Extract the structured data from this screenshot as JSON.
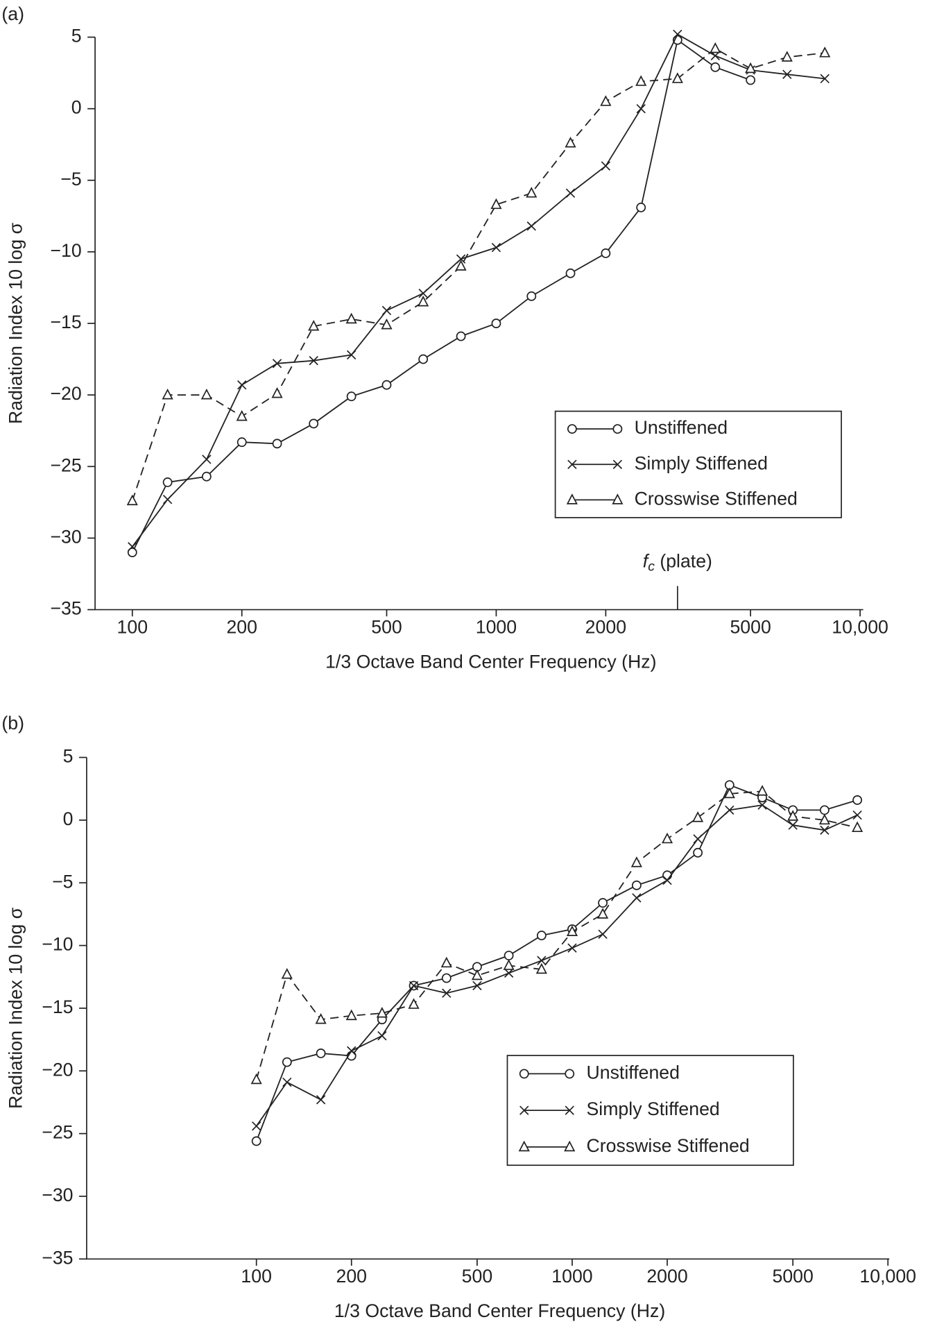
{
  "chart_data": [
    {
      "type": "line",
      "panel_label": "(a)",
      "xlabel": "1/3 Octave Band Center Frequency (Hz)",
      "ylabel": "Radiation Index 10 log σ",
      "x": [
        100,
        125,
        160,
        200,
        250,
        315,
        400,
        500,
        630,
        800,
        1000,
        1250,
        1600,
        2000,
        2500,
        3150,
        4000,
        5000,
        6300,
        8000
      ],
      "xscale": "log",
      "xlim": [
        79,
        10200
      ],
      "xticks": [
        100,
        200,
        500,
        1000,
        2000,
        5000,
        {
          "value": 10000,
          "label": "10,000"
        }
      ],
      "ylim": [
        -35,
        5
      ],
      "yticks": [
        {
          "value": -35,
          "label": "−35"
        },
        {
          "value": -30,
          "label": "−30"
        },
        {
          "value": -25,
          "label": "−25"
        },
        {
          "value": -20,
          "label": "−20"
        },
        {
          "value": -15,
          "label": "−15"
        },
        {
          "value": -10,
          "label": "−10"
        },
        {
          "value": -5,
          "label": "−5"
        },
        0,
        5
      ],
      "legend": "lower right",
      "series": [
        {
          "name": "Unstiffened",
          "color": "#222222",
          "marker": "circle",
          "linestyle": "solid",
          "values": [
            -31.0,
            -26.1,
            -25.7,
            -23.3,
            -23.4,
            -22.0,
            -20.1,
            -19.3,
            -17.5,
            -15.9,
            -15.0,
            -13.1,
            -11.5,
            -10.1,
            -6.9,
            4.8,
            2.9,
            2.0,
            null,
            null
          ]
        },
        {
          "name": "Simply Stiffened",
          "color": "#222222",
          "marker": "x",
          "linestyle": "solid",
          "values": [
            -30.6,
            -27.3,
            -24.5,
            -19.3,
            -17.8,
            -17.6,
            -17.2,
            -14.1,
            -12.9,
            -10.5,
            -9.7,
            -8.2,
            -5.9,
            -4.0,
            0.0,
            5.2,
            3.7,
            2.7,
            2.4,
            2.1
          ]
        },
        {
          "name": "Crosswise Stiffened",
          "color": "#222222",
          "marker": "triangle",
          "linestyle": "dashed",
          "values": [
            -27.4,
            -20.0,
            -20.0,
            -21.5,
            -19.9,
            -15.2,
            -14.7,
            -15.1,
            -13.5,
            -11.0,
            -6.7,
            -5.9,
            -2.4,
            0.5,
            1.9,
            2.1,
            4.2,
            2.8,
            3.6,
            3.9
          ]
        }
      ],
      "annotation": {
        "x": 3150,
        "symbol": "f",
        "subscript": "c",
        "text": "(plate)"
      }
    },
    {
      "type": "line",
      "panel_label": "(b)",
      "xlabel": "1/3 Octave Band Center Frequency (Hz)",
      "ylabel": "Radiation Index 10 log σ",
      "x": [
        100,
        125,
        160,
        200,
        250,
        315,
        400,
        500,
        630,
        800,
        1000,
        1250,
        1600,
        2000,
        2500,
        3150,
        4000,
        5000,
        6300,
        8000
      ],
      "xscale": "log",
      "xlim": [
        29,
        10100
      ],
      "xticks": [
        100,
        200,
        500,
        1000,
        2000,
        5000,
        {
          "value": 10000,
          "label": "10,000"
        }
      ],
      "ylim": [
        -35,
        5
      ],
      "yticks": [
        {
          "value": -35,
          "label": "−35"
        },
        {
          "value": -30,
          "label": "−30"
        },
        {
          "value": -25,
          "label": "−25"
        },
        {
          "value": -20,
          "label": "−20"
        },
        {
          "value": -15,
          "label": "−15"
        },
        {
          "value": -10,
          "label": "−10"
        },
        {
          "value": -5,
          "label": "−5"
        },
        0,
        5
      ],
      "legend": "lower right",
      "series": [
        {
          "name": "Unstiffened",
          "color": "#222222",
          "marker": "circle",
          "linestyle": "solid",
          "values": [
            -25.6,
            -19.3,
            -18.6,
            -18.8,
            -15.9,
            -13.2,
            -12.6,
            -11.7,
            -10.8,
            -9.2,
            -8.7,
            -6.6,
            -5.2,
            -4.4,
            -2.6,
            2.8,
            1.8,
            0.8,
            0.8,
            1.6
          ]
        },
        {
          "name": "Simply Stiffened",
          "color": "#222222",
          "marker": "x",
          "linestyle": "solid",
          "values": [
            -24.4,
            -20.9,
            -22.3,
            -18.4,
            -17.2,
            -13.2,
            -13.8,
            -13.2,
            -12.2,
            -11.2,
            -10.2,
            -9.1,
            -6.2,
            -4.8,
            -1.5,
            0.8,
            1.2,
            -0.4,
            -0.8,
            0.4
          ]
        },
        {
          "name": "Crosswise Stiffened",
          "color": "#222222",
          "marker": "triangle",
          "linestyle": "dashed",
          "values": [
            -20.7,
            -12.3,
            -15.9,
            -15.6,
            -15.4,
            -14.7,
            -11.4,
            -12.4,
            -11.6,
            -11.9,
            -8.9,
            -7.5,
            -3.4,
            -1.5,
            0.2,
            2.1,
            2.3,
            0.3,
            0.0,
            -0.6
          ]
        }
      ]
    }
  ]
}
